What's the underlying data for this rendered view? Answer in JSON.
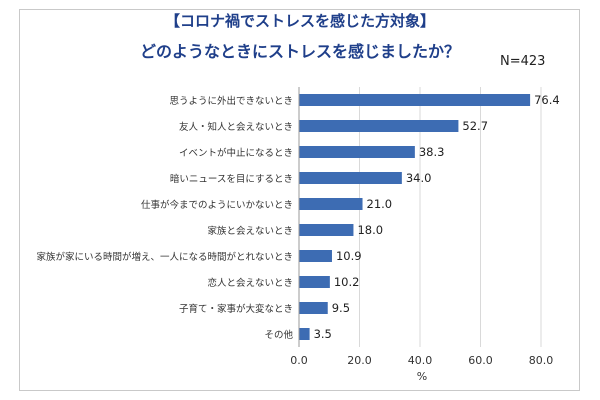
{
  "chart_data": {
    "type": "bar",
    "orientation": "horizontal",
    "title": "【コロナ禍でストレスを感じた方対象】",
    "subtitle": "どのようなときにストレスを感じましたか？",
    "sample_size": "N=423",
    "categories": [
      "思うように外出できないとき",
      "友人・知人と会えないとき",
      "イベントが中止になるとき",
      "暗いニュースを目にするとき",
      "仕事が今までのようにいかないとき",
      "家族と会えないとき",
      "家族が家にいる時間が増え、一人になる時間がとれないとき",
      "恋人と会えないとき",
      "子育て・家事が大変なとき",
      "その他"
    ],
    "values": [
      76.4,
      52.7,
      38.3,
      34.0,
      21.0,
      18.0,
      10.9,
      10.2,
      9.5,
      3.5
    ],
    "value_labels": [
      "76.4",
      "52.7",
      "38.3",
      "34.0",
      "21.0",
      "18.0",
      "10.9",
      "10.2",
      "9.5",
      "3.5"
    ],
    "xlim": [
      0,
      80
    ],
    "xticks": [
      "0.0",
      "20.0",
      "40.0",
      "60.0",
      "80.0"
    ],
    "xlabel": "%",
    "grid": true,
    "bar_color": "#3d6cb3"
  }
}
